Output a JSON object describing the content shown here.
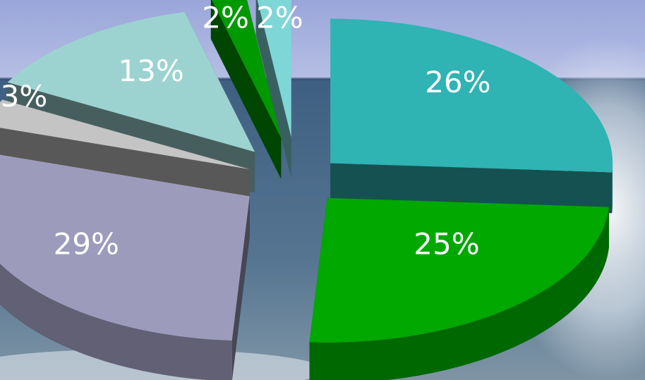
{
  "chart_data": {
    "type": "pie",
    "style": "3d-exploded",
    "title": "",
    "slices": [
      {
        "label": "26%",
        "value": 26,
        "color": "#2fb3b3"
      },
      {
        "label": "25%",
        "value": 25,
        "color": "#00a800"
      },
      {
        "label": "29%",
        "value": 29,
        "color": "#9d9bbb"
      },
      {
        "label": "3%",
        "value": 3,
        "color": "#c4c4c4"
      },
      {
        "label": "13%",
        "value": 13,
        "color": "#9cd3d0"
      },
      {
        "label": "2%",
        "value": 2,
        "color": "#009900"
      },
      {
        "label": "2%",
        "value": 2,
        "color": "#7fd6d6"
      }
    ],
    "legend": "none",
    "label_color": "#ffffff"
  },
  "background": {
    "sky_color": "#a8b2dd",
    "sea_color": "#4d6b88",
    "spray_color": "#eef2f8"
  }
}
